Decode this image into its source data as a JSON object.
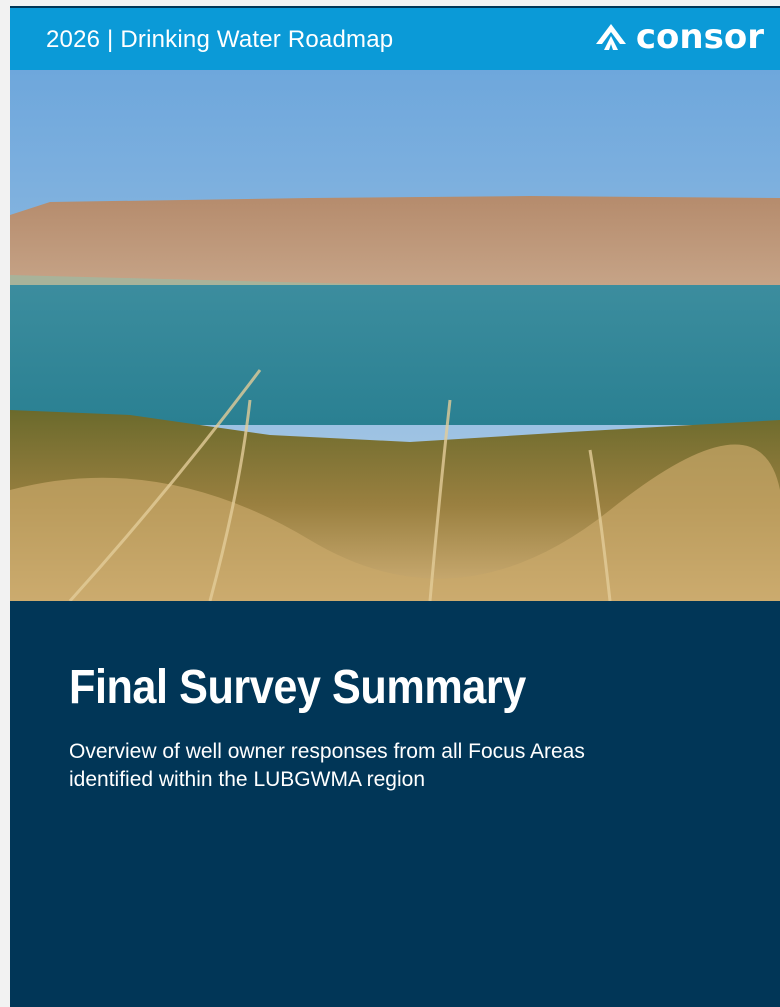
{
  "header": {
    "title": "2026 | Drinking Water Roadmap",
    "logo": "consor"
  },
  "cover": {
    "title": "Final Survey Summary",
    "subtitle": [
      "Overview of well owner responses from all Focus Areas",
      "identified within the LUBGWMA region"
    ]
  }
}
